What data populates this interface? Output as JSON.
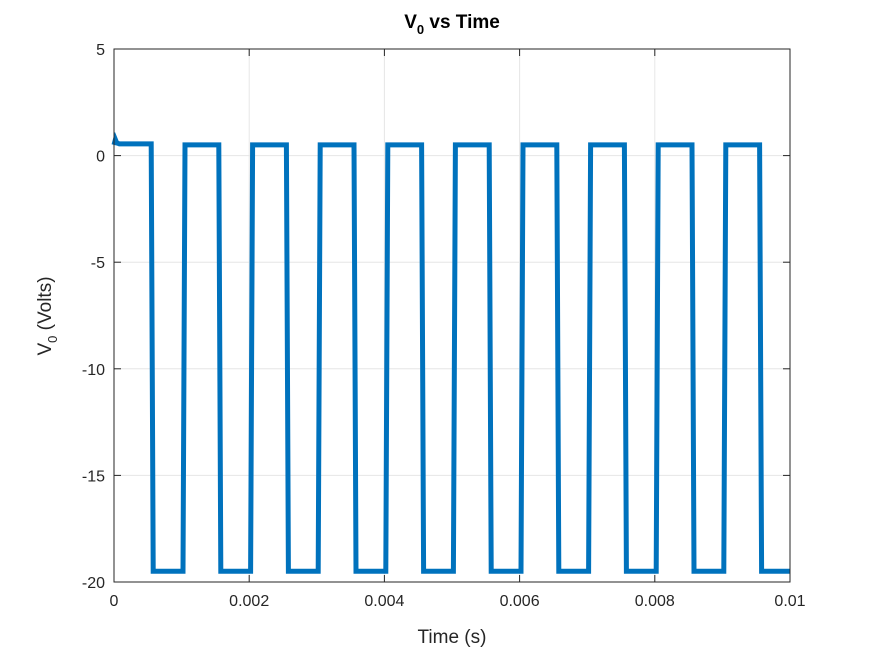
{
  "chart_data": {
    "type": "line",
    "title_main": "V",
    "title_sub": "0",
    "title_rest": " vs Time",
    "xlabel": "Time (s)",
    "ylabel_main": "V",
    "ylabel_sub": "0",
    "ylabel_rest": " (Volts)",
    "xlim": [
      0,
      0.01
    ],
    "ylim": [
      -20,
      5
    ],
    "xticks": [
      0,
      0.002,
      0.004,
      0.006,
      0.008,
      0.01
    ],
    "xtick_labels": [
      "0",
      "0.002",
      "0.004",
      "0.006",
      "0.008",
      "0.01"
    ],
    "yticks": [
      -20,
      -15,
      -10,
      -5,
      0,
      5
    ],
    "ytick_labels": [
      "-20",
      "-15",
      "-10",
      "-5",
      "0",
      "5"
    ],
    "grid": true,
    "line_color": "#0072BD",
    "series": [
      {
        "x": [
          0,
          2e-05,
          4e-05,
          8e-05,
          0.00055,
          0.00058,
          0.00102,
          0.00105,
          0.00155,
          0.00158,
          0.00202,
          0.00205,
          0.00255,
          0.00258,
          0.00302,
          0.00305,
          0.00355,
          0.00358,
          0.00402,
          0.00405,
          0.00455,
          0.00458,
          0.00502,
          0.00505,
          0.00555,
          0.00558,
          0.00602,
          0.00605,
          0.00655,
          0.00658,
          0.00702,
          0.00705,
          0.00755,
          0.00758,
          0.00802,
          0.00805,
          0.00855,
          0.00858,
          0.00902,
          0.00905,
          0.00955,
          0.00958,
          0.01
        ],
        "y": [
          0.5,
          0.75,
          0.6,
          0.55,
          0.55,
          -19.5,
          -19.5,
          0.5,
          0.5,
          -19.5,
          -19.5,
          0.5,
          0.5,
          -19.5,
          -19.5,
          0.5,
          0.5,
          -19.5,
          -19.5,
          0.5,
          0.5,
          -19.5,
          -19.5,
          0.5,
          0.5,
          -19.5,
          -19.5,
          0.5,
          0.5,
          -19.5,
          -19.5,
          0.5,
          0.5,
          -19.5,
          -19.5,
          0.5,
          0.5,
          -19.5,
          -19.5,
          0.5,
          0.5,
          -19.5,
          -19.5
        ]
      }
    ]
  }
}
